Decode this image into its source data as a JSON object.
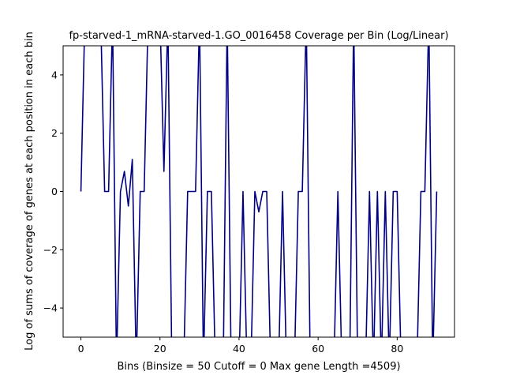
{
  "chart_data": {
    "type": "line",
    "title": "fp-starved-1_mRNA-starved-1.GO_0016458 Coverage per Bin (Log/Linear)",
    "xlabel": "Bins  (Binsize = 50 Cutoff = 0 Max gene Length =4509)",
    "ylabel": "Log of sums of coverage of genes at each position in each bin",
    "xlim": [
      -4.5,
      94.5
    ],
    "ylim": [
      -5,
      5
    ],
    "xticks": [
      0,
      20,
      40,
      60,
      80
    ],
    "yticks": [
      -4,
      -2,
      0,
      2,
      4
    ],
    "grid": false,
    "line_color": "#000080",
    "series": [
      {
        "x": [
          0,
          1,
          2,
          3,
          4,
          5,
          6,
          7,
          8,
          9,
          10,
          11,
          12,
          13,
          14,
          15,
          16,
          17,
          18,
          19,
          20,
          21,
          22,
          23,
          24,
          25,
          26,
          27,
          28,
          29,
          30,
          31,
          32,
          33,
          34,
          35,
          36,
          37,
          38,
          39,
          40,
          41,
          42,
          43,
          44,
          45,
          46,
          47,
          48,
          49,
          50,
          51,
          52,
          53,
          54,
          55,
          56,
          57,
          58,
          59,
          60,
          61,
          62,
          63,
          64,
          65,
          66,
          67,
          68,
          69,
          70,
          71,
          72,
          73,
          74,
          75,
          76,
          77,
          78,
          79,
          80,
          81,
          82,
          83,
          84,
          85,
          86,
          87,
          88,
          89,
          90
        ],
        "y": [
          0,
          6,
          6,
          6,
          6,
          6,
          0,
          0,
          6,
          -6,
          0,
          0.69,
          -0.5,
          1.1,
          -6,
          0,
          0,
          6,
          6,
          6,
          6,
          0.69,
          6,
          -6,
          -6,
          -6,
          -6,
          0,
          0,
          0,
          6,
          -6,
          0,
          0,
          -6,
          -6,
          -6,
          6,
          -6,
          -6,
          -6,
          0,
          -6,
          -6,
          0,
          -0.7,
          0,
          0,
          -6,
          -6,
          -6,
          0,
          -6,
          -6,
          -6,
          0,
          0,
          6,
          -6,
          -6,
          -6,
          -6,
          -6,
          -6,
          -6,
          0,
          -6,
          -6,
          -6,
          6,
          -6,
          -6,
          -6,
          0,
          -6,
          0,
          -6,
          0,
          -6,
          0,
          0,
          -6,
          -6,
          -6,
          -6,
          -6,
          0,
          0,
          6,
          -6,
          0
        ]
      }
    ]
  }
}
